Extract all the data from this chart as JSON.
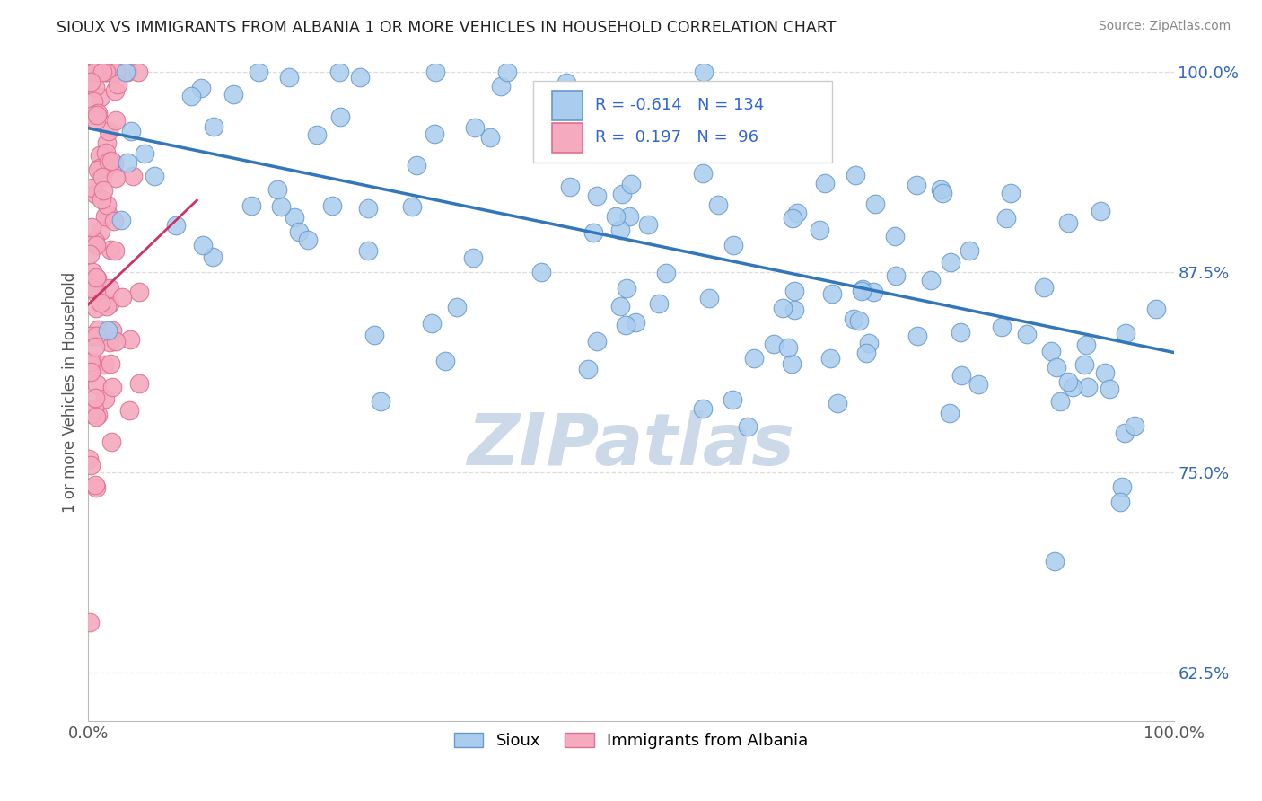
{
  "title": "SIOUX VS IMMIGRANTS FROM ALBANIA 1 OR MORE VEHICLES IN HOUSEHOLD CORRELATION CHART",
  "source": "Source: ZipAtlas.com",
  "ylabel": "1 or more Vehicles in Household",
  "legend_labels": [
    "Sioux",
    "Immigrants from Albania"
  ],
  "legend_r": [
    -0.614,
    0.197
  ],
  "legend_n": [
    134,
    96
  ],
  "xlim": [
    0.0,
    1.0
  ],
  "ylim": [
    0.595,
    1.005
  ],
  "yticks": [
    0.625,
    0.75,
    0.875,
    1.0
  ],
  "ytick_labels": [
    "62.5%",
    "75.0%",
    "87.5%",
    "100.0%"
  ],
  "xtick_vals": [
    0.0,
    1.0
  ],
  "xtick_labels": [
    "0.0%",
    "100.0%"
  ],
  "blue_scatter_face": "#aaccee",
  "blue_scatter_edge": "#6699cc",
  "pink_scatter_face": "#f5aabf",
  "pink_scatter_edge": "#e07090",
  "blue_line_color": "#3377bb",
  "pink_line_color": "#cc3366",
  "grid_color": "#dddddd",
  "watermark_color": "#ccd9e8",
  "watermark": "ZIPatlas",
  "blue_trend_x0": 0.0,
  "blue_trend_y0": 0.965,
  "blue_trend_x1": 1.0,
  "blue_trend_y1": 0.825,
  "pink_trend_x0": 0.0,
  "pink_trend_y0": 0.855,
  "pink_trend_x1": 0.1,
  "pink_trend_y1": 0.92
}
